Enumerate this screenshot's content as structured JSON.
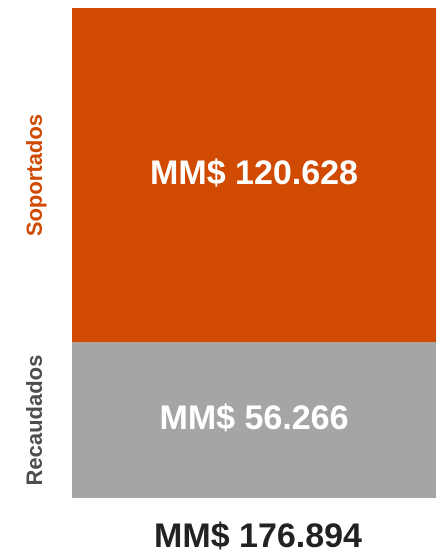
{
  "chart_data": {
    "type": "stacked_bar",
    "series": [
      {
        "name": "Recaudados",
        "color": "#a5a5a5",
        "label_color": "#4d4d4d",
        "values": [
          56266
        ],
        "value_labels": [
          "MM$ 56.266"
        ]
      },
      {
        "name": "Soportados",
        "color": "#d04a02",
        "label_color": "#d04a02",
        "values": [
          120628
        ],
        "value_labels": [
          "MM$ 120.628"
        ]
      }
    ],
    "total": {
      "value": 176894,
      "label": "MM$ 176.894"
    }
  }
}
